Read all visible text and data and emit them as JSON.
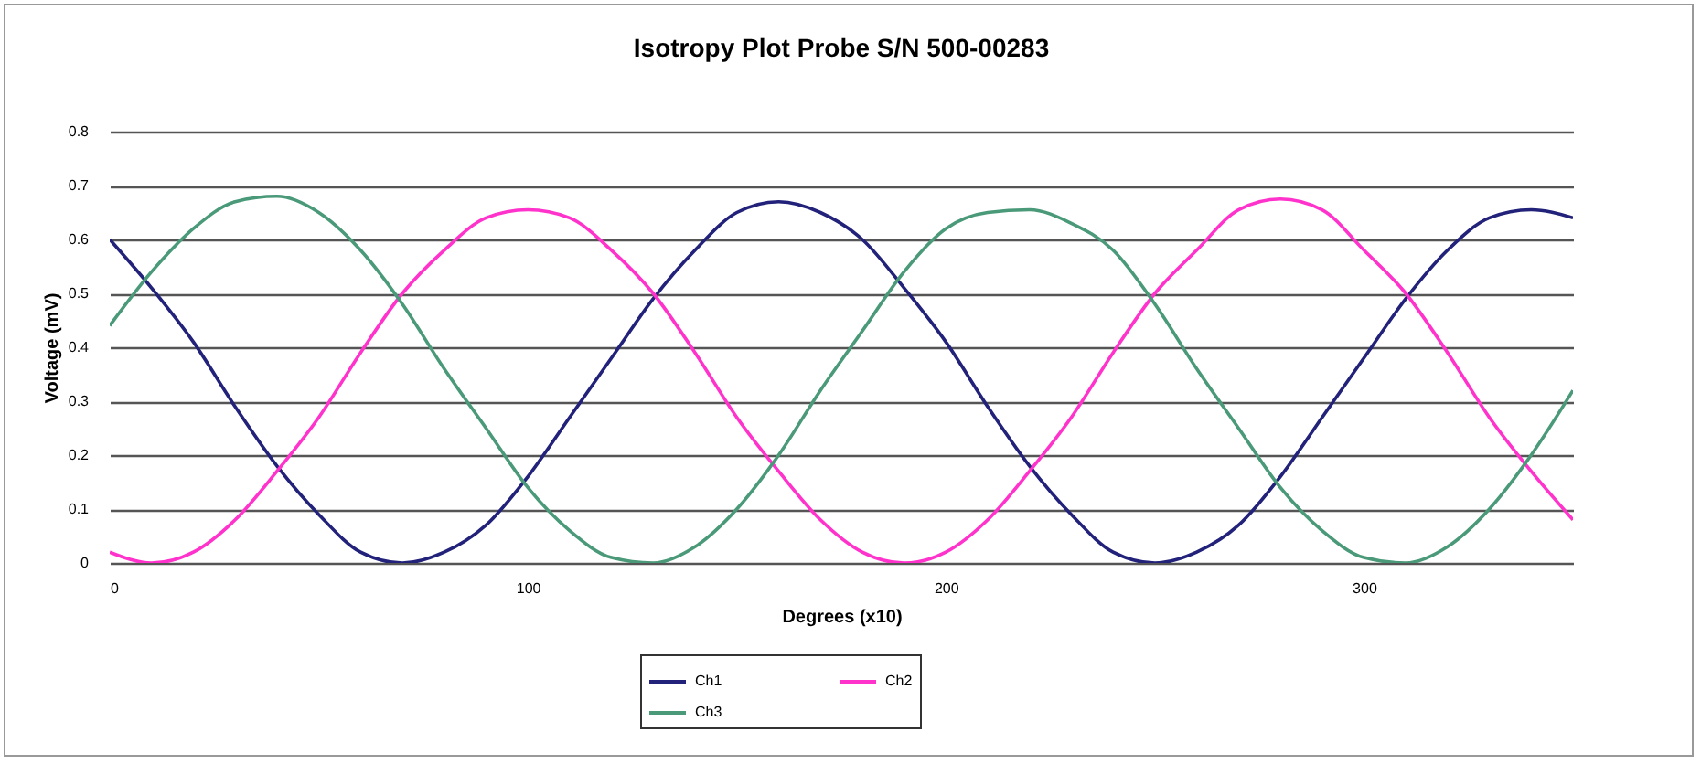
{
  "chart_data": {
    "type": "line",
    "title": "Isotropy Plot Probe S/N 500-00283",
    "xlabel": "Degrees (x10)",
    "ylabel": "Voltage (mV)",
    "x": [
      0,
      10,
      20,
      30,
      40,
      50,
      60,
      70,
      80,
      90,
      100,
      110,
      120,
      130,
      140,
      150,
      160,
      170,
      180,
      190,
      200,
      210,
      220,
      230,
      240,
      250,
      260,
      270,
      280,
      290,
      300,
      310,
      320,
      330,
      340,
      350
    ],
    "series": [
      {
        "name": "Ch1",
        "color": "#22227a",
        "values": [
          0.6,
          0.51,
          0.41,
          0.29,
          0.18,
          0.09,
          0.02,
          0,
          0.02,
          0.07,
          0.16,
          0.27,
          0.38,
          0.49,
          0.58,
          0.65,
          0.67,
          0.65,
          0.6,
          0.51,
          0.41,
          0.29,
          0.18,
          0.09,
          0.02,
          0,
          0.02,
          0.07,
          0.16,
          0.27,
          0.38,
          0.49,
          0.58,
          0.64,
          0.655,
          0.64
        ]
      },
      {
        "name": "Ch2",
        "color": "#ff33cc",
        "values": [
          0.02,
          0,
          0.02,
          0.08,
          0.17,
          0.27,
          0.39,
          0.5,
          0.58,
          0.64,
          0.655,
          0.64,
          0.58,
          0.5,
          0.39,
          0.27,
          0.17,
          0.08,
          0.02,
          0,
          0.02,
          0.08,
          0.17,
          0.27,
          0.39,
          0.5,
          0.58,
          0.655,
          0.675,
          0.655,
          0.58,
          0.5,
          0.39,
          0.27,
          0.17,
          0.08
        ]
      },
      {
        "name": "Ch3",
        "color": "#4a9a7a",
        "values": [
          0.44,
          0.54,
          0.62,
          0.67,
          0.68,
          0.65,
          0.58,
          0.48,
          0.36,
          0.25,
          0.14,
          0.06,
          0.01,
          0,
          0.03,
          0.1,
          0.2,
          0.32,
          0.43,
          0.54,
          0.62,
          0.65,
          0.655,
          0.63,
          0.58,
          0.48,
          0.36,
          0.25,
          0.14,
          0.06,
          0.01,
          0,
          0.03,
          0.1,
          0.2,
          0.32
        ]
      }
    ],
    "xlim": [
      0,
      350
    ],
    "xticks": [
      0,
      100,
      200,
      300
    ],
    "ylim": [
      0,
      0.8
    ],
    "yticks": [
      0,
      0.1,
      0.2,
      0.3,
      0.4,
      0.5,
      0.6,
      0.7,
      0.8
    ],
    "grid": "y",
    "legend": "bottom",
    "marker": "none",
    "line_style": "solid"
  }
}
